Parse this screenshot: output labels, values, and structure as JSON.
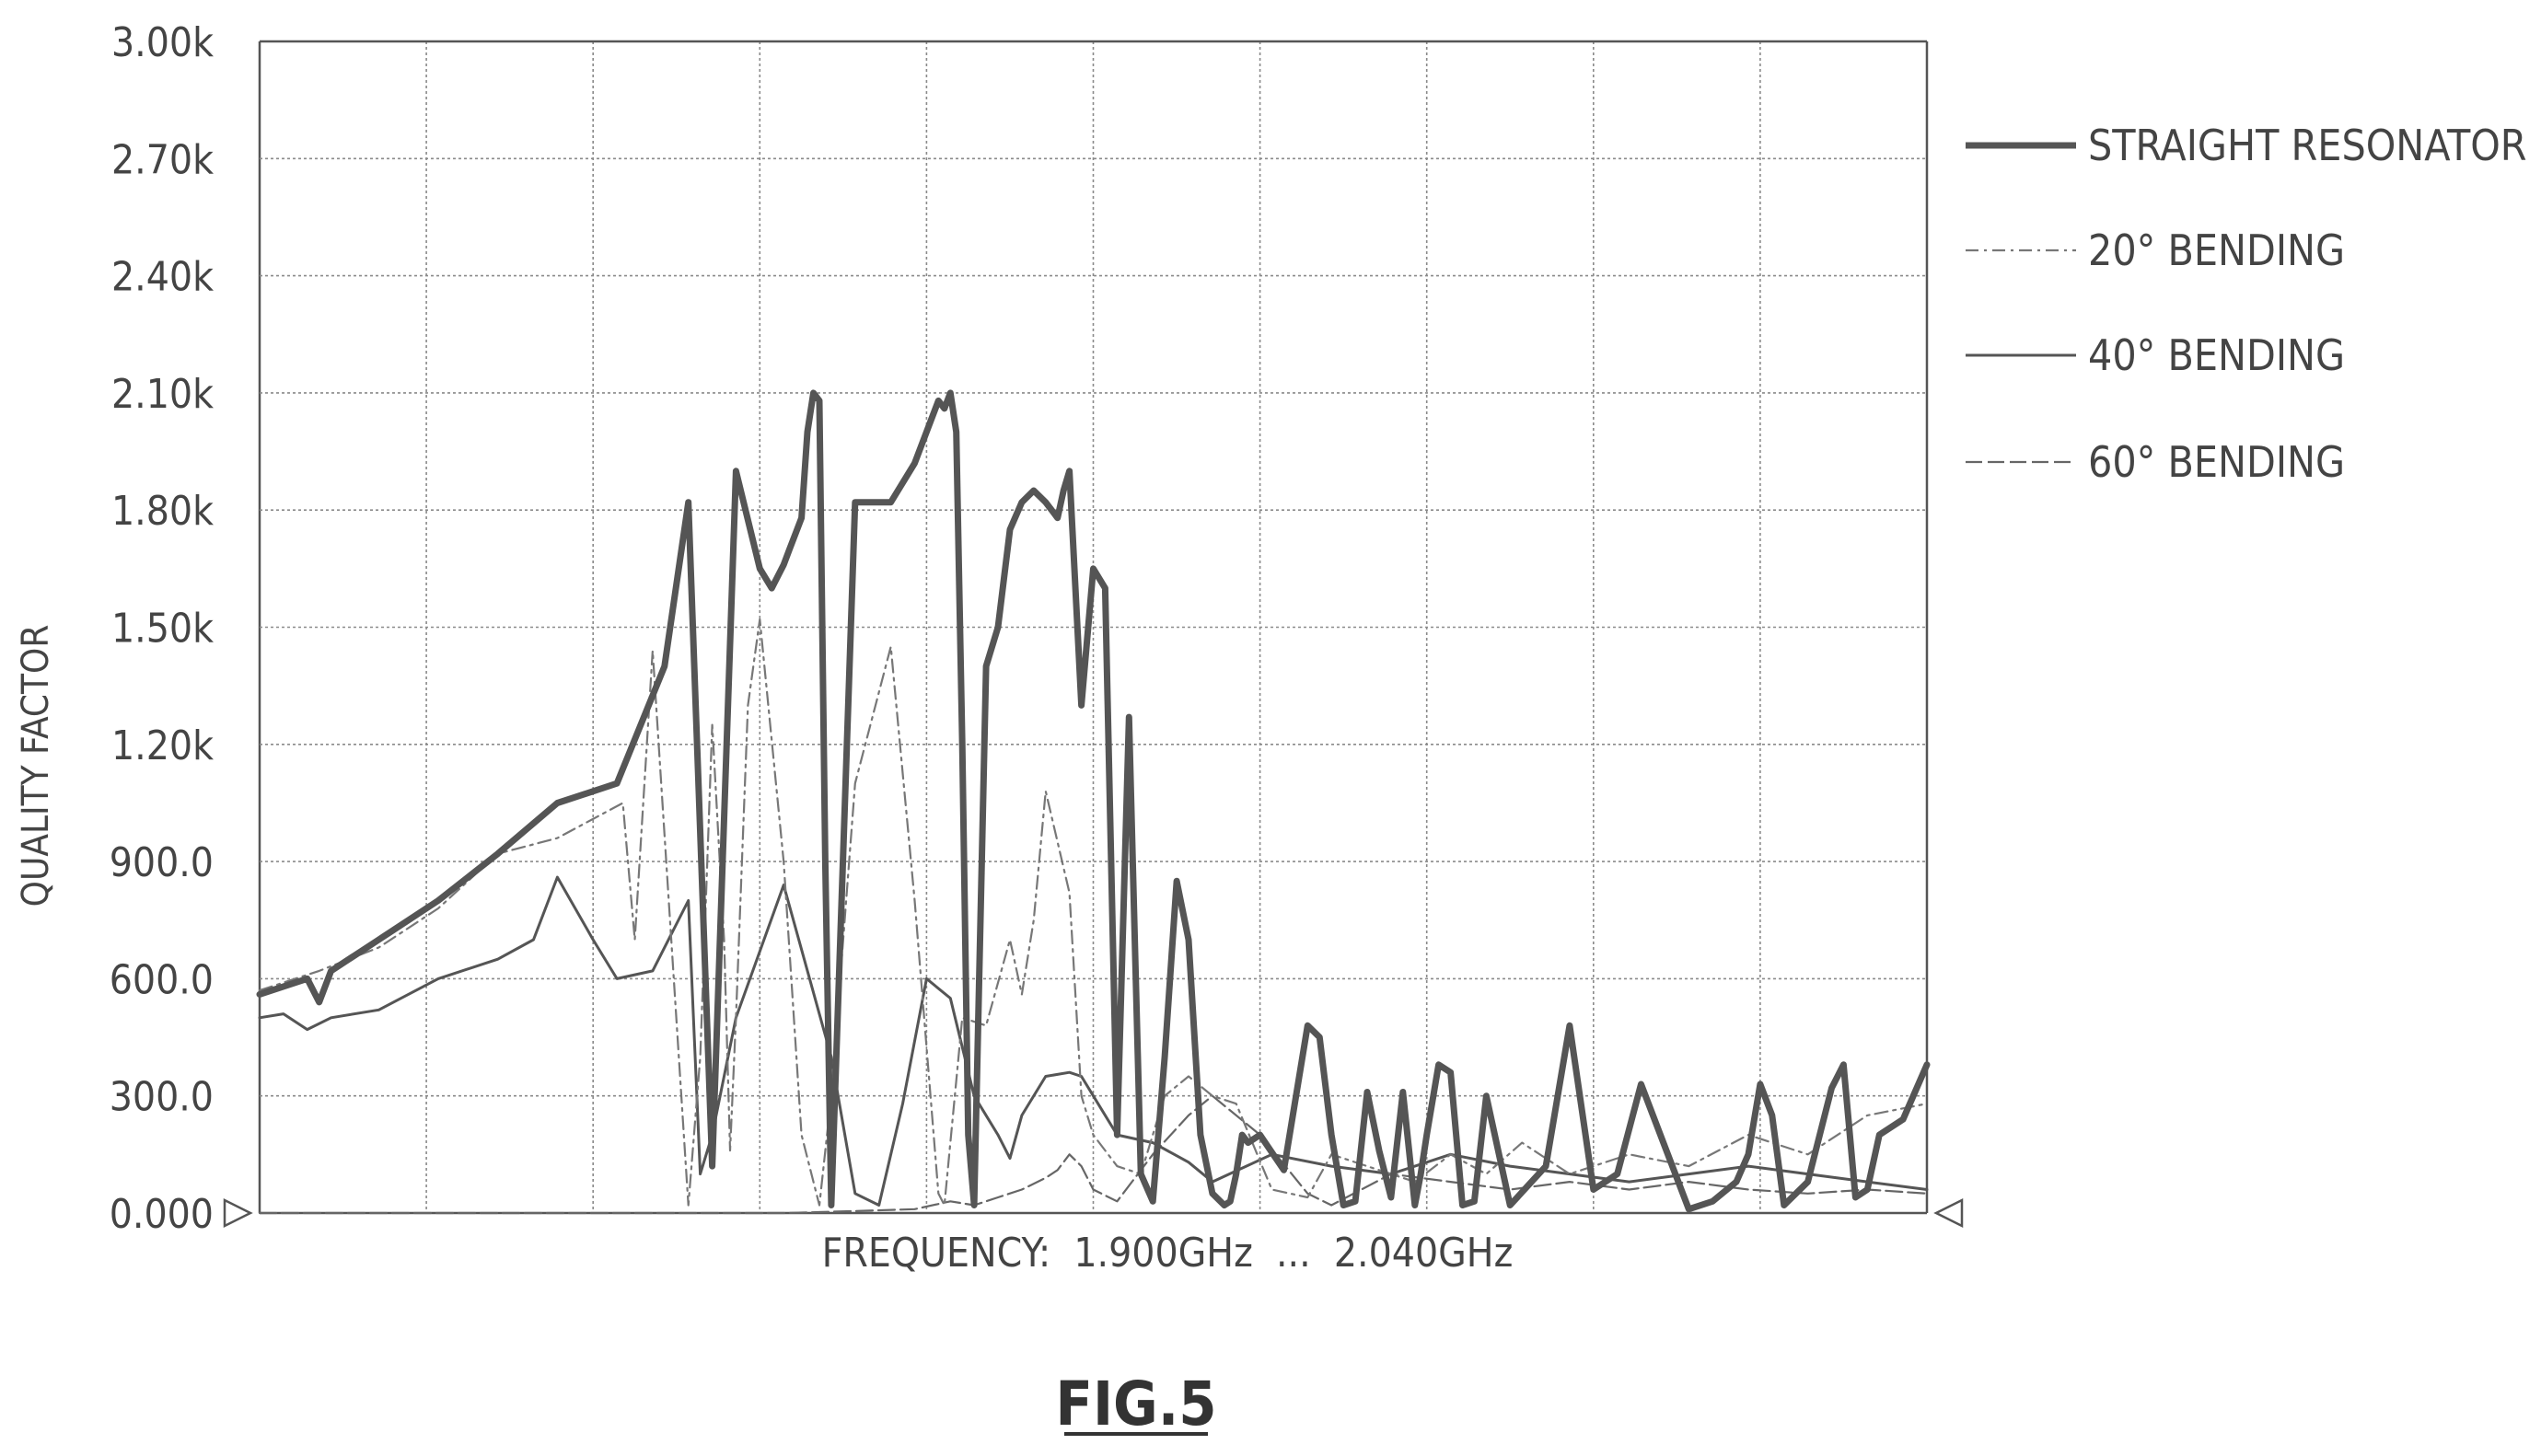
{
  "chart_data": {
    "type": "line",
    "title": "",
    "xlabel": "FREQUENCY:  1.900GHz  ...  2.040GHz",
    "ylabel": "QUALITY FACTOR",
    "caption": "FIG.5",
    "xlim": [
      1.9,
      2.04
    ],
    "ylim": [
      0,
      3000
    ],
    "grid": true,
    "legend_position": "right",
    "y_tick_labels": [
      "0.000",
      "300.0",
      "600.0",
      "900.0",
      "1.20k",
      "1.50k",
      "1.80k",
      "2.10k",
      "2.40k",
      "2.70k",
      "3.00k"
    ],
    "y_ticks": [
      0,
      300,
      600,
      900,
      1200,
      1500,
      1800,
      2100,
      2400,
      2700,
      3000
    ],
    "x_divisions": 10,
    "series": [
      {
        "name": "STRAIGHT  RESONATOR",
        "x": [
          1.9,
          1.904,
          1.905,
          1.906,
          1.91,
          1.915,
          1.92,
          1.925,
          1.93,
          1.934,
          1.936,
          1.938,
          1.94,
          1.942,
          1.943,
          1.944,
          1.9445,
          1.945,
          1.9455,
          1.946,
          1.9465,
          1.947,
          1.9475,
          1.948,
          1.95,
          1.953,
          1.955,
          1.956,
          1.957,
          1.9575,
          1.958,
          1.9585,
          1.959,
          1.9595,
          1.96,
          1.961,
          1.962,
          1.963,
          1.964,
          1.965,
          1.966,
          1.967,
          1.9675,
          1.968,
          1.969,
          1.97,
          1.971,
          1.972,
          1.973,
          1.974,
          1.975,
          1.976,
          1.977,
          1.978,
          1.979,
          1.98,
          1.981,
          1.9815,
          1.982,
          1.9825,
          1.983,
          1.984,
          1.986,
          1.988,
          1.989,
          1.99,
          1.991,
          1.992,
          1.993,
          1.994,
          1.995,
          1.996,
          1.997,
          1.9975,
          1.998,
          1.999,
          2.0,
          2.001,
          2.002,
          2.003,
          2.005,
          2.008,
          2.01,
          2.012,
          2.014,
          2.016,
          2.02,
          2.022,
          2.024,
          2.025,
          2.026,
          2.027,
          2.028,
          2.03,
          2.032,
          2.033,
          2.034,
          2.035,
          2.036,
          2.038,
          2.04
        ],
        "values": [
          560,
          600,
          540,
          620,
          700,
          800,
          920,
          1050,
          1100,
          1400,
          1820,
          120,
          1900,
          1650,
          1600,
          1660,
          1700,
          1740,
          1780,
          2000,
          2100,
          2080,
          900,
          20,
          1820,
          1820,
          1920,
          2000,
          2080,
          2060,
          2100,
          2000,
          1200,
          200,
          20,
          1400,
          1500,
          1750,
          1820,
          1850,
          1820,
          1780,
          1850,
          1900,
          1300,
          1650,
          1600,
          200,
          1270,
          100,
          30,
          400,
          850,
          700,
          200,
          50,
          20,
          30,
          100,
          200,
          180,
          200,
          110,
          480,
          450,
          200,
          20,
          30,
          310,
          160,
          40,
          310,
          20,
          100,
          200,
          380,
          360,
          20,
          30,
          300,
          20,
          120,
          480,
          60,
          100,
          330,
          10,
          30,
          80,
          150,
          330,
          250,
          20,
          80,
          320,
          380,
          40,
          60,
          200,
          240,
          380
        ]
      },
      {
        "name": "20° BENDING",
        "x": [
          1.9,
          1.905,
          1.91,
          1.915,
          1.92,
          1.925,
          1.9305,
          1.9315,
          1.933,
          1.936,
          1.937,
          1.938,
          1.939,
          1.9395,
          1.94,
          1.941,
          1.942,
          1.944,
          1.9455,
          1.947,
          1.948,
          1.95,
          1.953,
          1.955,
          1.957,
          1.9575,
          1.959,
          1.961,
          1.963,
          1.964,
          1.965,
          1.966,
          1.968,
          1.969,
          1.97,
          1.972,
          1.974,
          1.976,
          1.978,
          1.98,
          1.982,
          1.985,
          1.988,
          1.99,
          1.993,
          1.995,
          1.997,
          2.0,
          2.003,
          2.006,
          2.01,
          2.015,
          2.02,
          2.025,
          2.03,
          2.035,
          2.04
        ],
        "values": [
          570,
          620,
          680,
          780,
          920,
          960,
          1050,
          700,
          1440,
          20,
          400,
          1250,
          700,
          160,
          500,
          1300,
          1520,
          900,
          200,
          20,
          300,
          1100,
          1450,
          800,
          50,
          20,
          500,
          480,
          700,
          560,
          750,
          1080,
          820,
          300,
          200,
          120,
          100,
          300,
          350,
          300,
          280,
          60,
          40,
          150,
          120,
          100,
          80,
          150,
          100,
          180,
          100,
          150,
          120,
          200,
          150,
          250,
          280
        ]
      },
      {
        "name": "40° BENDING",
        "x": [
          1.9,
          1.902,
          1.904,
          1.906,
          1.91,
          1.915,
          1.92,
          1.923,
          1.925,
          1.928,
          1.93,
          1.933,
          1.936,
          1.937,
          1.938,
          1.94,
          1.944,
          1.948,
          1.95,
          1.952,
          1.954,
          1.956,
          1.958,
          1.96,
          1.962,
          1.963,
          1.964,
          1.966,
          1.968,
          1.969,
          1.97,
          1.972,
          1.975,
          1.978,
          1.98,
          1.985,
          1.99,
          1.995,
          2.0,
          2.005,
          2.01,
          2.015,
          2.02,
          2.025,
          2.03,
          2.035,
          2.04
        ],
        "values": [
          500,
          510,
          470,
          500,
          520,
          600,
          650,
          700,
          860,
          700,
          600,
          620,
          800,
          100,
          200,
          500,
          840,
          400,
          50,
          20,
          280,
          600,
          550,
          300,
          200,
          140,
          250,
          350,
          360,
          350,
          300,
          200,
          180,
          130,
          80,
          150,
          120,
          100,
          150,
          120,
          100,
          80,
          100,
          120,
          100,
          80,
          60
        ]
      },
      {
        "name": "60° BENDING",
        "x": [
          1.9,
          1.91,
          1.92,
          1.93,
          1.94,
          1.944,
          1.95,
          1.955,
          1.958,
          1.96,
          1.962,
          1.964,
          1.966,
          1.967,
          1.968,
          1.969,
          1.97,
          1.972,
          1.975,
          1.978,
          1.98,
          1.984,
          1.988,
          1.99,
          1.995,
          2.0,
          2.005,
          2.01,
          2.015,
          2.02,
          2.025,
          2.03,
          2.035,
          2.04
        ],
        "values": [
          0,
          0,
          0,
          0,
          0,
          0,
          5,
          10,
          30,
          20,
          40,
          60,
          90,
          110,
          150,
          120,
          60,
          30,
          150,
          250,
          300,
          200,
          50,
          20,
          100,
          80,
          60,
          80,
          60,
          80,
          60,
          50,
          60,
          50
        ]
      }
    ]
  }
}
